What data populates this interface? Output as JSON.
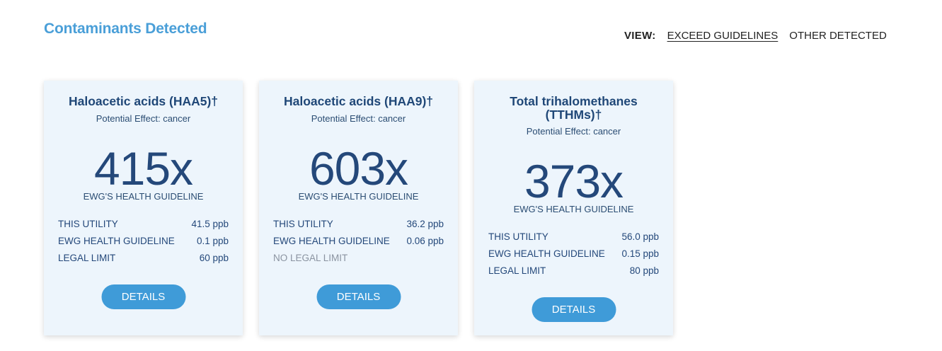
{
  "section_title": "Contaminants Detected",
  "view": {
    "label": "VIEW:",
    "tabs": [
      "EXCEED GUIDELINES",
      "OTHER DETECTED"
    ]
  },
  "cards": [
    {
      "title": "Haloacetic acids (HAA5)†",
      "effect": "Potential Effect: cancer",
      "multiplier": "415x",
      "caption": "EWG'S HEALTH GUIDELINE",
      "rows": [
        {
          "label": "THIS UTILITY",
          "value": "41.5 ppb"
        },
        {
          "label": "EWG HEALTH GUIDELINE",
          "value": "0.1 ppb"
        },
        {
          "label": "LEGAL LIMIT",
          "value": "60 ppb"
        }
      ],
      "button": "DETAILS"
    },
    {
      "title": "Haloacetic acids (HAA9)†",
      "effect": "Potential Effect: cancer",
      "multiplier": "603x",
      "caption": "EWG'S HEALTH GUIDELINE",
      "rows": [
        {
          "label": "THIS UTILITY",
          "value": "36.2 ppb"
        },
        {
          "label": "EWG HEALTH GUIDELINE",
          "value": "0.06 ppb"
        },
        {
          "label": "NO LEGAL LIMIT",
          "value": ""
        }
      ],
      "button": "DETAILS"
    },
    {
      "title": "Total trihalomethanes (TTHMs)†",
      "effect": "Potential Effect: cancer",
      "multiplier": "373x",
      "caption": "EWG'S HEALTH GUIDELINE",
      "rows": [
        {
          "label": "THIS UTILITY",
          "value": "56.0 ppb"
        },
        {
          "label": "EWG HEALTH GUIDELINE",
          "value": "0.15 ppb"
        },
        {
          "label": "LEGAL LIMIT",
          "value": "80 ppb"
        }
      ],
      "button": "DETAILS"
    }
  ],
  "colors": {
    "accent": "#4a9fd8",
    "button": "#3f9bd8",
    "card_bg": "#edf5fc",
    "text_dark": "#1f4777"
  }
}
